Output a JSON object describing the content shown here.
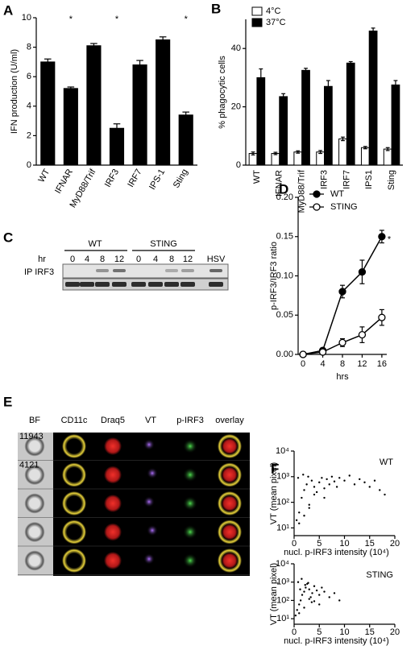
{
  "chart_data": [
    {
      "type": "bar",
      "ylabel": "IFN production (U/ml)",
      "categories": [
        "WT",
        "IFNAR",
        "MyD88/Trif",
        "IRF3",
        "IRF7",
        "IPS-1",
        "Sting"
      ],
      "values": [
        7.0,
        5.2,
        8.1,
        2.5,
        6.8,
        8.5,
        3.4
      ],
      "errors": [
        0.2,
        0.1,
        0.15,
        0.3,
        0.3,
        0.2,
        0.2
      ],
      "color": "#000000",
      "ylim": [
        0,
        10
      ],
      "yticks": [
        0,
        2,
        4,
        6,
        8,
        10
      ],
      "annotations": [
        {
          "text": "*",
          "category": "IFNAR"
        },
        {
          "text": "*",
          "category": "IRF3"
        },
        {
          "text": "*",
          "category": "Sting"
        }
      ]
    },
    {
      "type": "bar",
      "ylabel": "% phagocytic cells",
      "categories": [
        "WT",
        "IFNAR",
        "MyD88/Trif",
        "IRF3",
        "IRF7",
        "IPS1",
        "Sting"
      ],
      "series": [
        {
          "name": "4°C",
          "color": "#ffffff",
          "values": [
            4,
            4,
            4.5,
            4.5,
            9,
            6,
            5.5
          ],
          "errors": [
            0.5,
            0.4,
            0.4,
            0.5,
            0.6,
            0.4,
            0.5
          ]
        },
        {
          "name": "37°C",
          "color": "#000000",
          "values": [
            30,
            23.5,
            32.5,
            27,
            35,
            46,
            27.5
          ],
          "errors": [
            3,
            1,
            0.7,
            2,
            0.5,
            1,
            1.5
          ]
        }
      ],
      "ylim": [
        0,
        50
      ],
      "yticks": [
        0,
        20,
        40
      ],
      "legend": "top-left"
    },
    {
      "type": "line",
      "xlabel": "hrs",
      "ylabel": "p-IRF3/IRF3 ratio",
      "x": [
        0,
        4,
        8,
        12,
        16
      ],
      "xlim": [
        -1,
        17
      ],
      "xticks": [
        0,
        4,
        8,
        12,
        16
      ],
      "ylim": [
        0,
        0.2
      ],
      "yticks": [
        {
          "value": 0,
          "label": "0.00"
        },
        {
          "value": 0.05,
          "label": "0.05"
        },
        {
          "value": 0.1,
          "label": "0.10"
        },
        {
          "value": 0.15,
          "label": "0.15"
        },
        {
          "value": 0.2,
          "label": "0.20"
        }
      ],
      "series": [
        {
          "name": "WT",
          "color": "#000000",
          "values": [
            0,
            0.005,
            0.08,
            0.105,
            0.15
          ],
          "errors": [
            0.002,
            0.003,
            0.008,
            0.015,
            0.008
          ]
        },
        {
          "name": "STING",
          "color": "#ffffff",
          "values": [
            0,
            0.003,
            0.015,
            0.025,
            0.047
          ],
          "errors": [
            0.002,
            0.002,
            0.005,
            0.01,
            0.01
          ]
        }
      ],
      "legend": "top-left",
      "annotations": [
        {
          "text": "*",
          "series": "WT"
        }
      ]
    },
    {
      "type": "scatter",
      "xlabel": "nucl. p-IRF3 intensity (10⁴)",
      "ylabel": "VT (mean pixel)",
      "annotation": "WT",
      "x": [
        0.5,
        1,
        1.5,
        2,
        2.5,
        3,
        3.5,
        4,
        4.5,
        5,
        5.5,
        6,
        6.5,
        7,
        7.5,
        8,
        8.5,
        9,
        10,
        11,
        12,
        13,
        14,
        15,
        16,
        17,
        18,
        1,
        2,
        3,
        0.8,
        1.8,
        2.8,
        4,
        6
      ],
      "values": [
        20,
        40,
        150,
        300,
        500,
        80,
        700,
        400,
        250,
        600,
        900,
        350,
        800,
        500,
        1000,
        650,
        400,
        900,
        700,
        1100,
        500,
        800,
        600,
        400,
        700,
        300,
        200,
        15,
        30,
        60,
        900,
        1200,
        1000,
        200,
        150
      ],
      "color": "#000000",
      "xlim": [
        0,
        20
      ],
      "xticks": [
        0,
        5,
        10,
        15,
        20
      ],
      "ylim": [
        5,
        10000
      ],
      "log_y": true,
      "yticks": [
        {
          "value": 10,
          "label": "10¹"
        },
        {
          "value": 100,
          "label": "10²"
        },
        {
          "value": 1000,
          "label": "10³"
        },
        {
          "value": 10000,
          "label": "10⁴"
        }
      ]
    },
    {
      "type": "scatter",
      "xlabel": "nucl. p-IRF3 intensity (10⁴)",
      "ylabel": "VT (mean pixel)",
      "annotation": "STING",
      "x": [
        0.3,
        0.6,
        1,
        1.3,
        1.6,
        2,
        2.3,
        2.6,
        3,
        3.3,
        3.6,
        4,
        4.5,
        5,
        5.5,
        6,
        7,
        8,
        9,
        0.8,
        1.5,
        2.2,
        2.8,
        3.5,
        1,
        2,
        3,
        4,
        5,
        1.2
      ],
      "values": [
        15,
        30,
        60,
        100,
        200,
        300,
        500,
        800,
        400,
        150,
        250,
        600,
        350,
        200,
        500,
        300,
        150,
        250,
        100,
        1000,
        1500,
        700,
        900,
        80,
        20,
        40,
        120,
        90,
        60,
        400
      ],
      "color": "#000000",
      "xlim": [
        0,
        20
      ],
      "xticks": [
        0,
        5,
        10,
        15,
        20
      ],
      "ylim": [
        5,
        10000
      ],
      "log_y": true,
      "yticks": [
        {
          "value": 10,
          "label": "10¹"
        },
        {
          "value": 100,
          "label": "10²"
        },
        {
          "value": 1000,
          "label": "10³"
        },
        {
          "value": 10000,
          "label": "10⁴"
        }
      ]
    }
  ],
  "figure": {
    "panel_labels": [
      "A",
      "B",
      "C",
      "D",
      "E",
      "F"
    ],
    "blot": {
      "hr": "hr",
      "groups": [
        "WT",
        "STING"
      ],
      "times": [
        "0",
        "4",
        "8",
        "12",
        "0",
        "4",
        "8",
        "12"
      ],
      "control": "HSV",
      "row_label": "IP IRF3"
    },
    "microscopy": {
      "channels": [
        "BF",
        "CD11c",
        "Draq5",
        "VT",
        "p-IRF3",
        "overlay"
      ],
      "cell_ids": [
        "11943",
        "4121"
      ]
    }
  }
}
